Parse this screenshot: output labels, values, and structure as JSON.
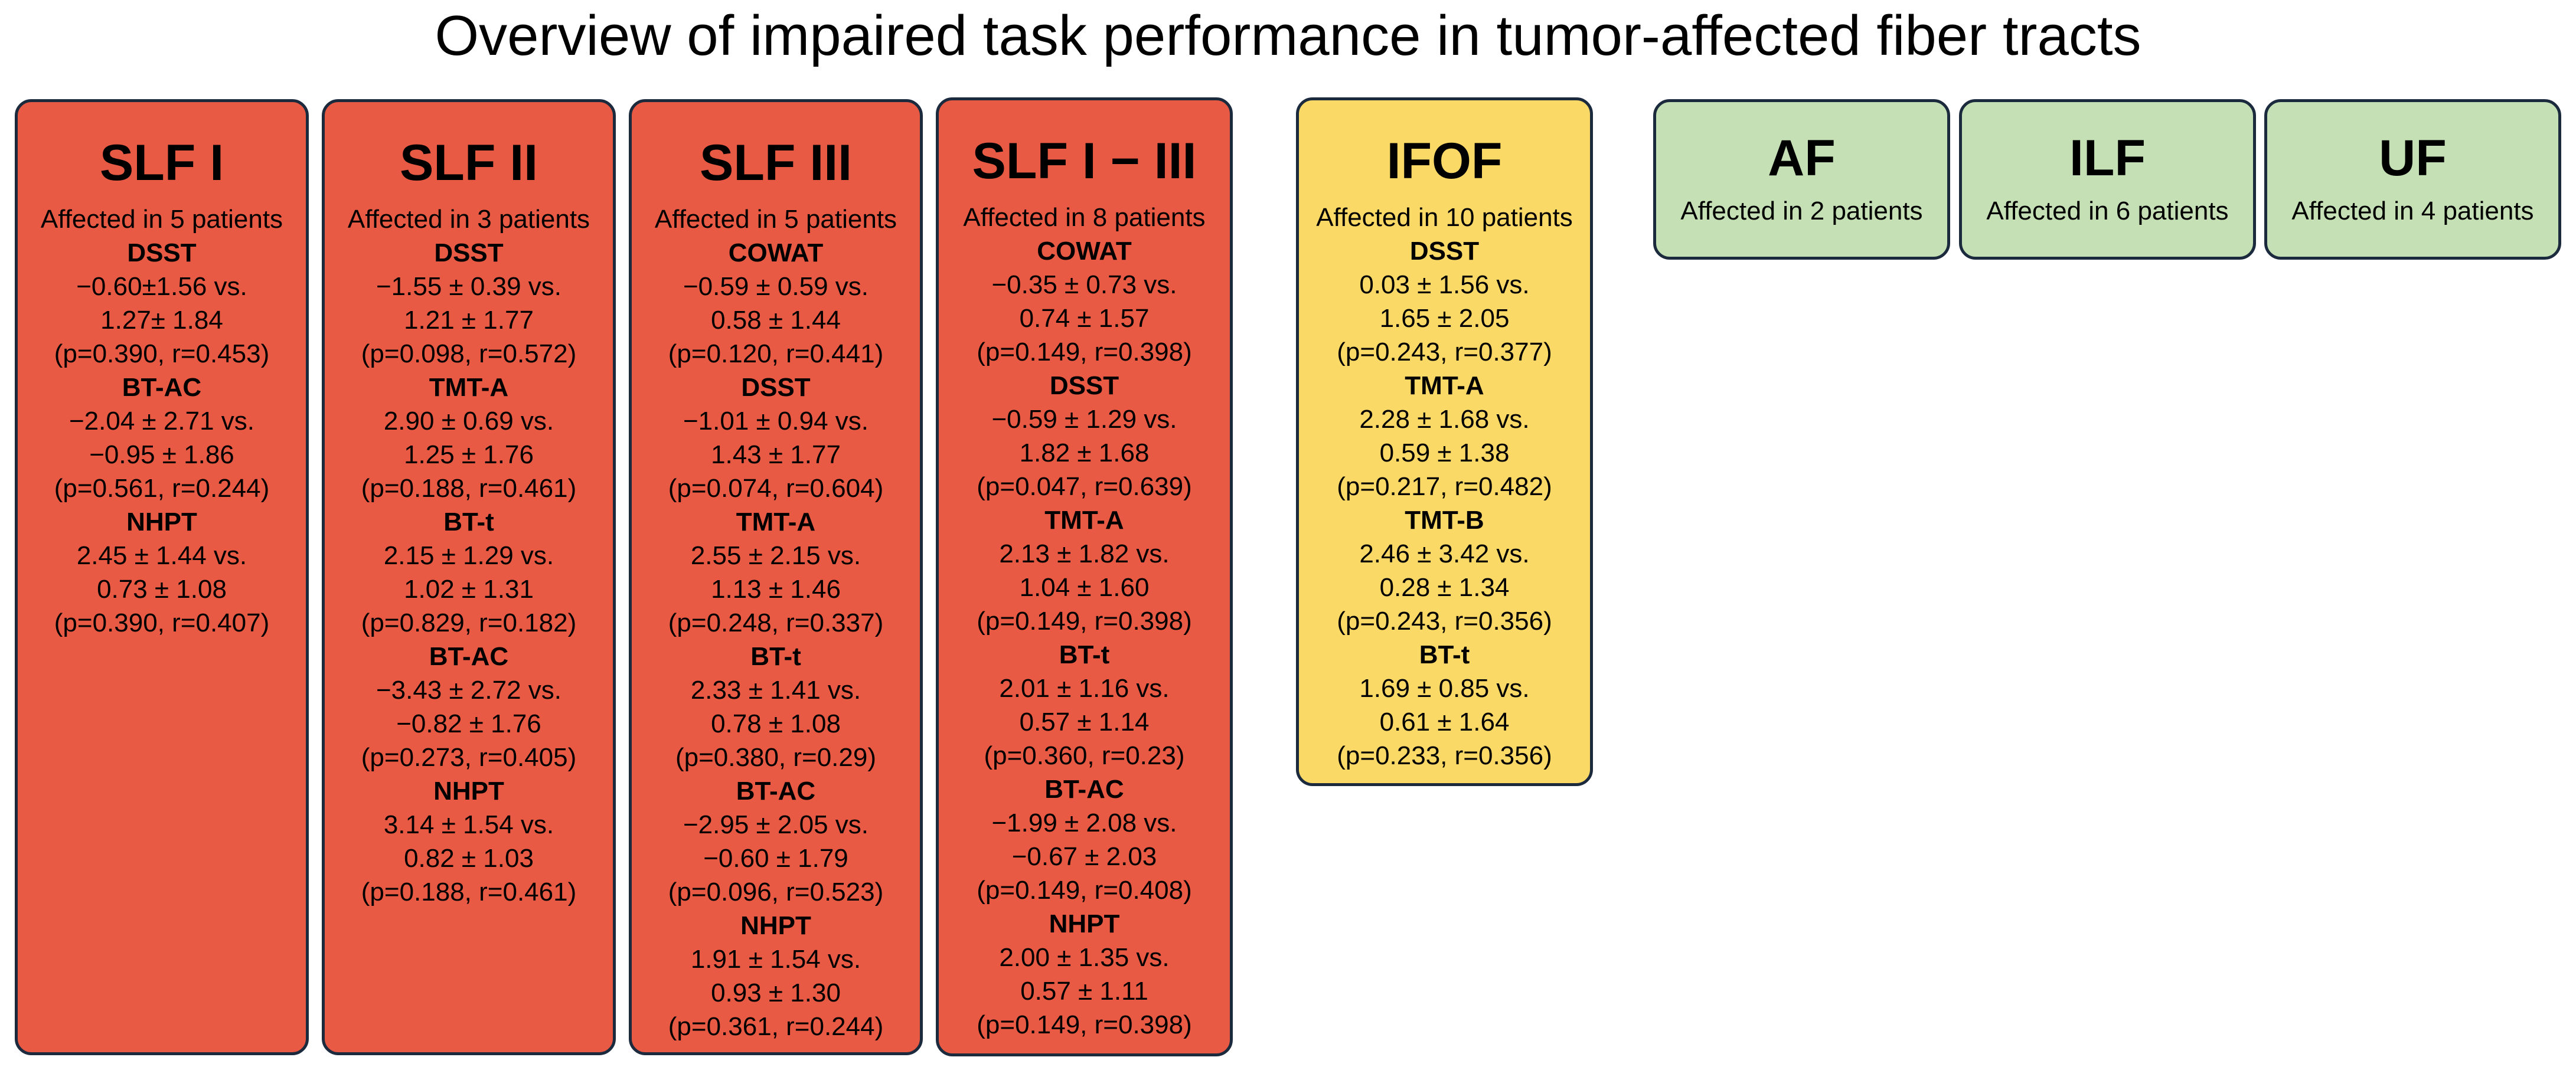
{
  "title": "Overview of impaired task performance in tumor-affected fiber tracts",
  "cards": [
    {
      "name": "SLF I",
      "affected": "Affected in 5 patients",
      "color": "#e85a43",
      "tests": [
        {
          "name": "DSST",
          "line1": "−0.60±1.56 vs.",
          "line2": "1.27± 1.84",
          "stats": "(p=0.390, r=0.453)"
        },
        {
          "name": "BT-AC",
          "line1": "−2.04 ± 2.71 vs.",
          "line2": "−0.95 ± 1.86",
          "stats": "(p=0.561, r=0.244)"
        },
        {
          "name": "NHPT",
          "line1": "2.45 ± 1.44 vs.",
          "line2": "0.73 ± 1.08",
          "stats": "(p=0.390, r=0.407)"
        }
      ]
    },
    {
      "name": "SLF II",
      "affected": "Affected in 3 patients",
      "color": "#e85a43",
      "tests": [
        {
          "name": "DSST",
          "line1": "−1.55 ± 0.39 vs.",
          "line2": "1.21 ± 1.77",
          "stats": "(p=0.098, r=0.572)"
        },
        {
          "name": "TMT-A",
          "line1": "2.90 ± 0.69 vs.",
          "line2": "1.25 ± 1.76",
          "stats": "(p=0.188, r=0.461)"
        },
        {
          "name": "BT-t",
          "line1": "2.15 ± 1.29 vs.",
          "line2": "1.02 ± 1.31",
          "stats": "(p=0.829, r=0.182)"
        },
        {
          "name": "BT-AC",
          "line1": "−3.43 ± 2.72 vs.",
          "line2": "−0.82 ± 1.76",
          "stats": "(p=0.273, r=0.405)"
        },
        {
          "name": "NHPT",
          "line1": "3.14 ± 1.54 vs.",
          "line2": "0.82 ± 1.03",
          "stats": "(p=0.188, r=0.461)"
        }
      ]
    },
    {
      "name": "SLF III",
      "affected": "Affected in 5 patients",
      "color": "#e85a43",
      "tests": [
        {
          "name": "COWAT",
          "line1": "−0.59 ± 0.59 vs.",
          "line2": "0.58 ± 1.44",
          "stats": "(p=0.120, r=0.441)"
        },
        {
          "name": "DSST",
          "line1": "−1.01 ± 0.94 vs.",
          "line2": "1.43 ± 1.77",
          "stats": "(p=0.074, r=0.604)"
        },
        {
          "name": "TMT-A",
          "line1": "2.55 ± 2.15 vs.",
          "line2": "1.13 ± 1.46",
          "stats": "(p=0.248, r=0.337)"
        },
        {
          "name": "BT-t",
          "line1": "2.33 ± 1.41 vs.",
          "line2": "0.78 ± 1.08",
          "stats": "(p=0.380, r=0.29)"
        },
        {
          "name": "BT-AC",
          "line1": "−2.95 ± 2.05 vs.",
          "line2": "−0.60 ± 1.79",
          "stats": "(p=0.096, r=0.523)"
        },
        {
          "name": "NHPT",
          "line1": "1.91 ± 1.54 vs.",
          "line2": "0.93 ± 1.30",
          "stats": "(p=0.361, r=0.244)"
        }
      ]
    },
    {
      "name": "SLF I − III",
      "affected": "Affected in 8 patients",
      "color": "#e85a43",
      "tests": [
        {
          "name": "COWAT",
          "line1": "−0.35 ± 0.73 vs.",
          "line2": "0.74 ± 1.57",
          "stats": "(p=0.149, r=0.398)"
        },
        {
          "name": "DSST",
          "line1": "−0.59 ± 1.29 vs.",
          "line2": "1.82 ± 1.68",
          "stats": "(p=0.047, r=0.639)"
        },
        {
          "name": "TMT-A",
          "line1": "2.13 ± 1.82 vs.",
          "line2": "1.04 ± 1.60",
          "stats": "(p=0.149, r=0.398)"
        },
        {
          "name": "BT-t",
          "line1": "2.01 ± 1.16 vs.",
          "line2": "0.57 ± 1.14",
          "stats": "(p=0.360, r=0.23)"
        },
        {
          "name": "BT-AC",
          "line1": "−1.99 ± 2.08 vs.",
          "line2": "−0.67 ± 2.03",
          "stats": "(p=0.149, r=0.408)"
        },
        {
          "name": "NHPT",
          "line1": "2.00 ± 1.35 vs.",
          "line2": "0.57 ± 1.11",
          "stats": "(p=0.149, r=0.398)"
        }
      ]
    },
    {
      "name": "IFOF",
      "affected": "Affected in 10 patients",
      "color": "#fbd967",
      "tests": [
        {
          "name": "DSST",
          "line1": "0.03 ± 1.56 vs.",
          "line2": "1.65 ± 2.05",
          "stats": "(p=0.243, r=0.377)"
        },
        {
          "name": "TMT-A",
          "line1": "2.28 ± 1.68 vs.",
          "line2": "0.59 ± 1.38",
          "stats": "(p=0.217, r=0.482)"
        },
        {
          "name": "TMT-B",
          "line1": "2.46 ± 3.42 vs.",
          "line2": "0.28 ± 1.34",
          "stats": "(p=0.243, r=0.356)"
        },
        {
          "name": "BT-t",
          "line1": "1.69 ± 0.85 vs.",
          "line2": "0.61 ± 1.64",
          "stats": "(p=0.233, r=0.356)"
        }
      ]
    },
    {
      "name": "AF",
      "affected": "Affected in 2 patients",
      "color": "#c4e0b4",
      "tests": []
    },
    {
      "name": "ILF",
      "affected": "Affected in 6 patients",
      "color": "#c4e0b4",
      "tests": []
    },
    {
      "name": "UF",
      "affected": "Affected in 4 patients",
      "color": "#c4e0b4",
      "tests": []
    }
  ]
}
